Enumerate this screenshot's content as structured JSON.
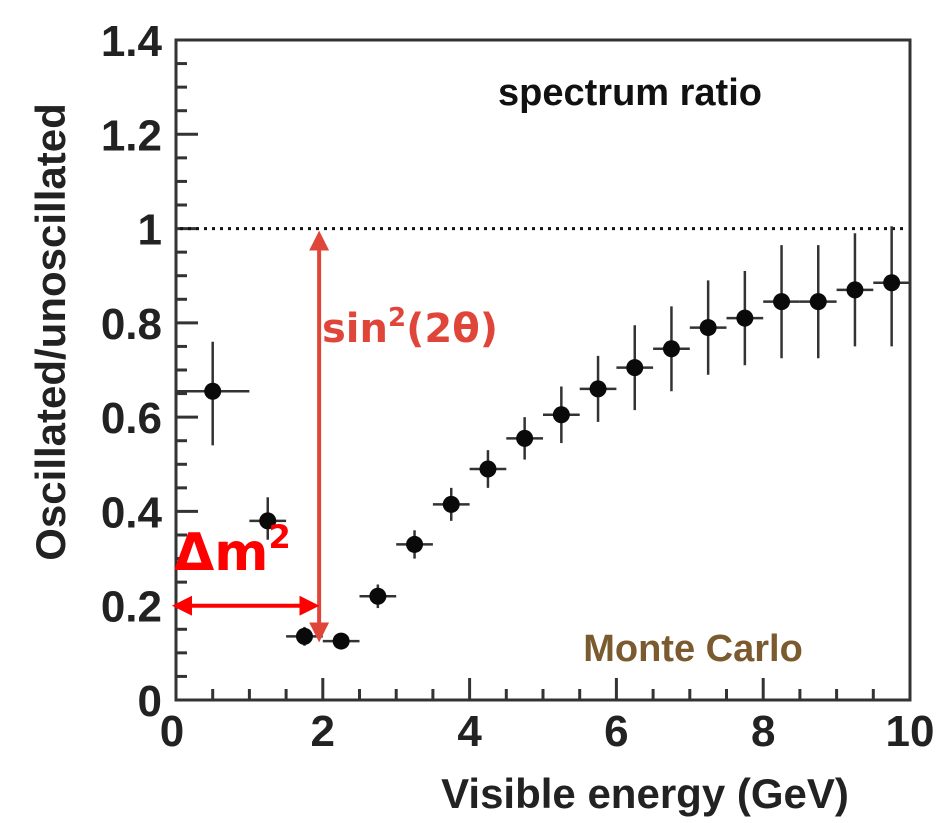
{
  "chart_data": {
    "type": "scatter",
    "title": "spectrum ratio",
    "xlabel": "Visible energy (GeV)",
    "ylabel": "Oscillated/unoscillated",
    "xlim": [
      0,
      10
    ],
    "ylim": [
      0,
      1.4
    ],
    "x_ticks": [
      "0",
      "2",
      "4",
      "6",
      "8",
      "10"
    ],
    "y_ticks": [
      "0",
      "0.2",
      "0.4",
      "0.6",
      "0.8",
      "1",
      "1.2",
      "1.4"
    ],
    "x_tick_values": [
      0,
      2,
      4,
      6,
      8,
      10
    ],
    "y_tick_values": [
      0,
      0.2,
      0.4,
      0.6,
      0.8,
      1.0,
      1.2,
      1.4
    ],
    "reference_line": {
      "y": 1.0,
      "style": "dotted"
    },
    "series": [
      {
        "points": [
          {
            "x": 0.5,
            "y": 0.655,
            "xerr": 0.5,
            "yerr_low": 0.115,
            "yerr_high": 0.105
          },
          {
            "x": 1.25,
            "y": 0.38,
            "xerr": 0.25,
            "yerr_low": 0.04,
            "yerr_high": 0.05
          },
          {
            "x": 1.75,
            "y": 0.135,
            "xerr": 0.25,
            "yerr_low": 0.02,
            "yerr_high": 0.02
          },
          {
            "x": 2.25,
            "y": 0.125,
            "xerr": 0.25,
            "yerr_low": 0.015,
            "yerr_high": 0.015
          },
          {
            "x": 2.75,
            "y": 0.22,
            "xerr": 0.25,
            "yerr_low": 0.025,
            "yerr_high": 0.025
          },
          {
            "x": 3.25,
            "y": 0.33,
            "xerr": 0.25,
            "yerr_low": 0.03,
            "yerr_high": 0.03
          },
          {
            "x": 3.75,
            "y": 0.415,
            "xerr": 0.25,
            "yerr_low": 0.035,
            "yerr_high": 0.035
          },
          {
            "x": 4.25,
            "y": 0.49,
            "xerr": 0.25,
            "yerr_low": 0.04,
            "yerr_high": 0.04
          },
          {
            "x": 4.75,
            "y": 0.555,
            "xerr": 0.25,
            "yerr_low": 0.045,
            "yerr_high": 0.045
          },
          {
            "x": 5.25,
            "y": 0.605,
            "xerr": 0.25,
            "yerr_low": 0.06,
            "yerr_high": 0.06
          },
          {
            "x": 5.75,
            "y": 0.66,
            "xerr": 0.25,
            "yerr_low": 0.07,
            "yerr_high": 0.07
          },
          {
            "x": 6.25,
            "y": 0.705,
            "xerr": 0.25,
            "yerr_low": 0.09,
            "yerr_high": 0.09
          },
          {
            "x": 6.75,
            "y": 0.745,
            "xerr": 0.25,
            "yerr_low": 0.09,
            "yerr_high": 0.09
          },
          {
            "x": 7.25,
            "y": 0.79,
            "xerr": 0.25,
            "yerr_low": 0.1,
            "yerr_high": 0.1
          },
          {
            "x": 7.75,
            "y": 0.81,
            "xerr": 0.25,
            "yerr_low": 0.1,
            "yerr_high": 0.1
          },
          {
            "x": 8.25,
            "y": 0.845,
            "xerr": 0.25,
            "yerr_low": 0.12,
            "yerr_high": 0.12
          },
          {
            "x": 8.75,
            "y": 0.845,
            "xerr": 0.25,
            "yerr_low": 0.12,
            "yerr_high": 0.12
          },
          {
            "x": 9.25,
            "y": 0.87,
            "xerr": 0.25,
            "yerr_low": 0.12,
            "yerr_high": 0.12
          },
          {
            "x": 9.75,
            "y": 0.885,
            "xerr": 0.25,
            "yerr_low": 0.135,
            "yerr_high": 0.12
          }
        ]
      }
    ],
    "annotations": {
      "sin_label_base": "sin",
      "sin_label_sup": "2",
      "sin_label_tail": "(2θ)",
      "sin_arrow": {
        "x": 1.95,
        "y_from": 1.0,
        "y_to": 0.135
      },
      "dm_label_base": "Δm",
      "dm_label_sup": "2",
      "dm_arrow": {
        "y": 0.2,
        "x_from": 0,
        "x_to": 1.9
      },
      "monte_carlo": "Monte Carlo"
    },
    "colors": {
      "points": "#0a0a0a",
      "error_bars": "#333333",
      "sin_annotation": "#e0453a",
      "dm_annotation": "#ff0000",
      "monte_carlo": "#7a5a2e"
    }
  }
}
